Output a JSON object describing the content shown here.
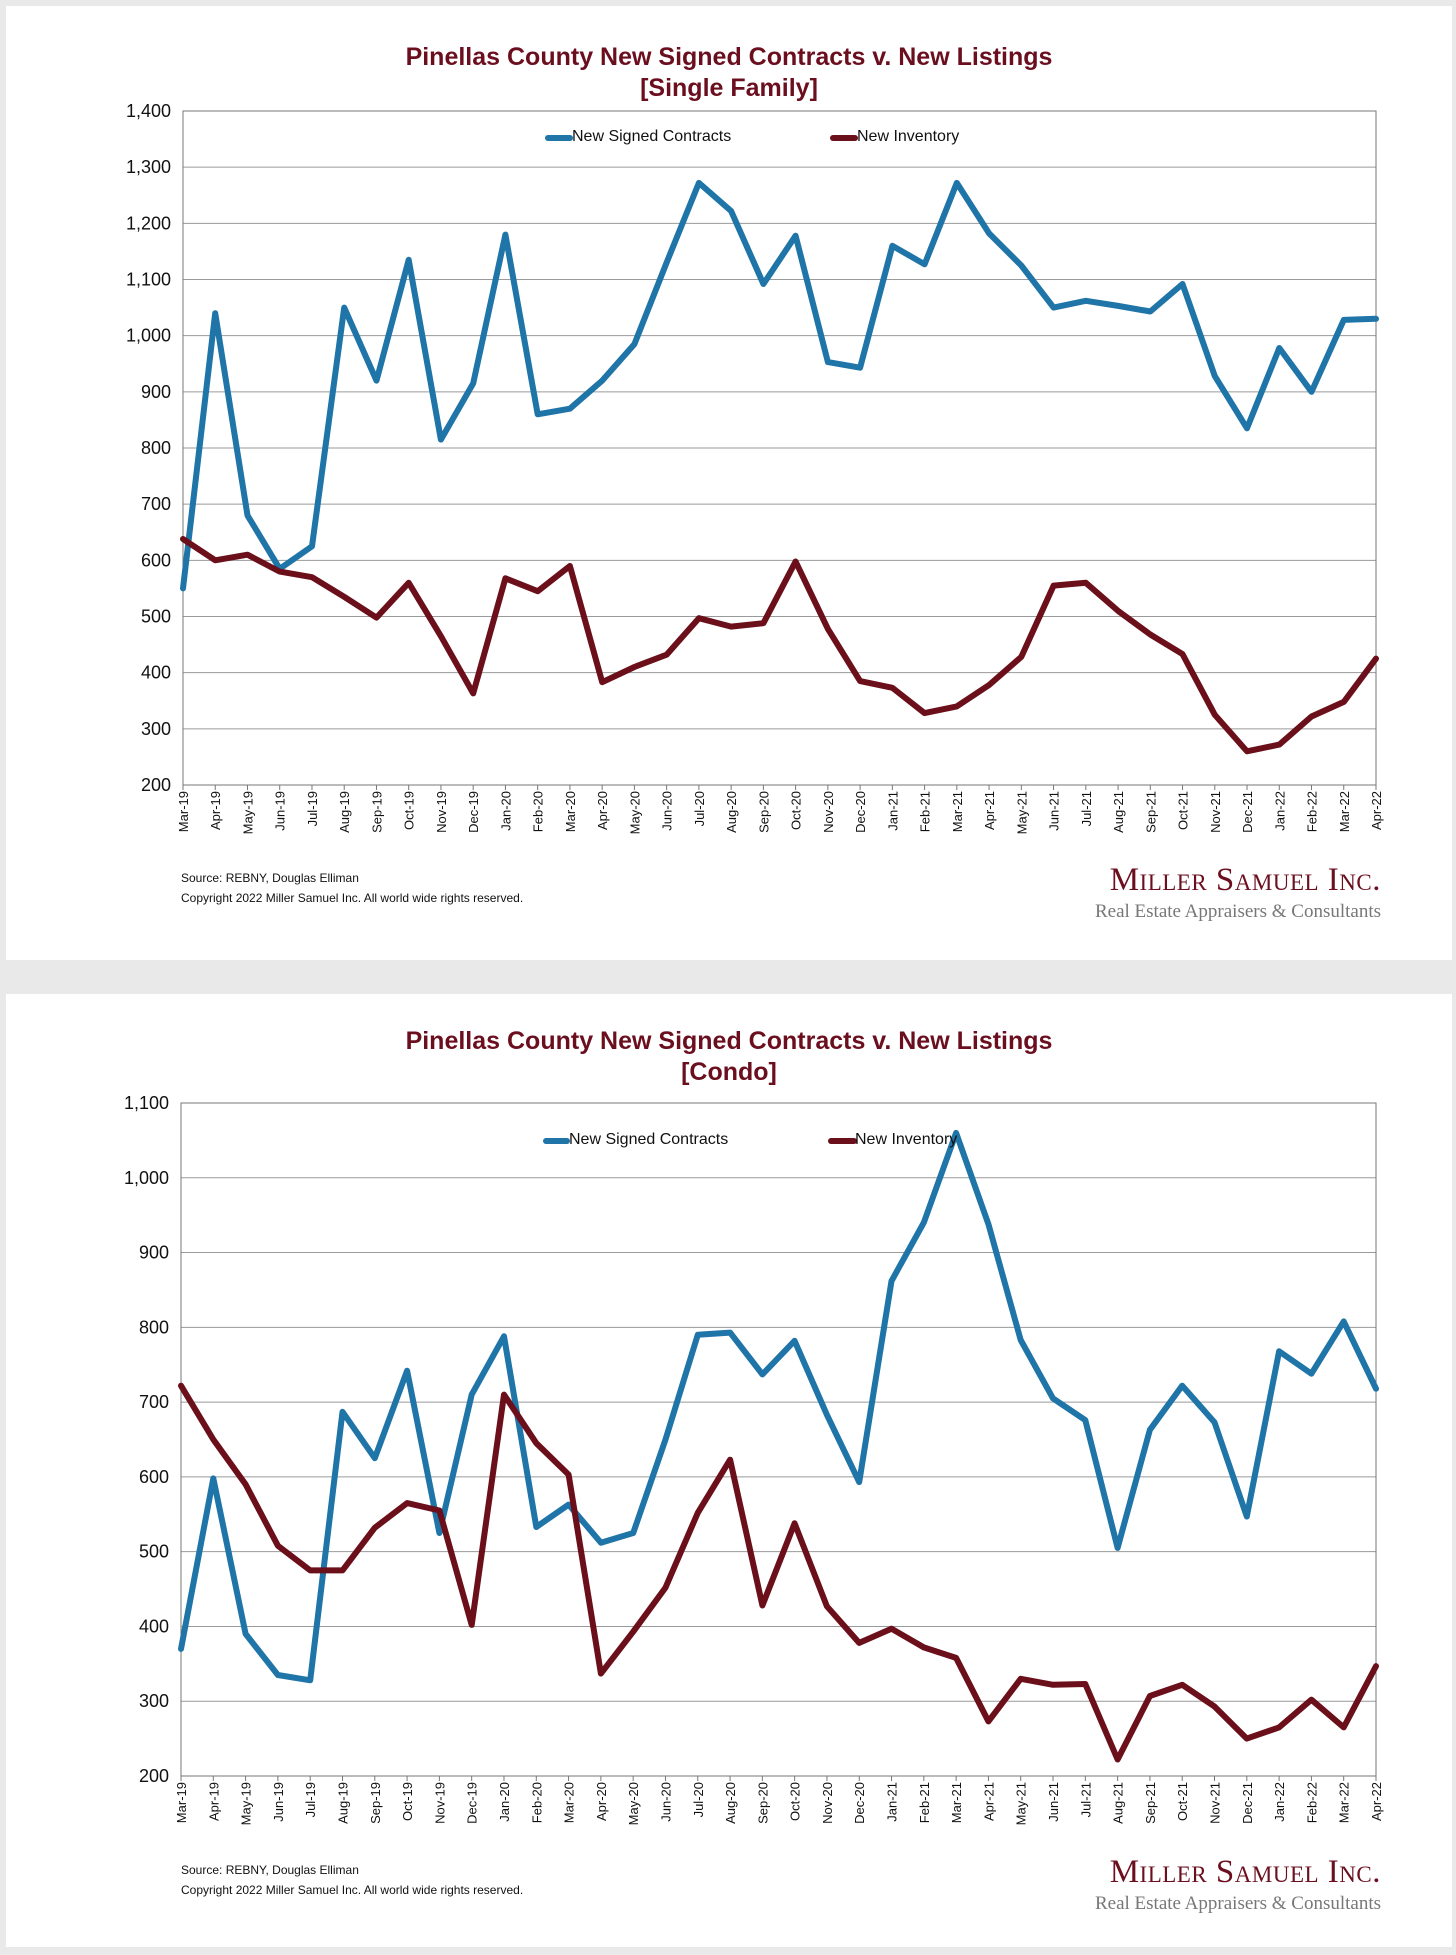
{
  "chart_data": [
    {
      "type": "line",
      "title": "Pinellas County New Signed Contracts v. New Listings",
      "subtitle": "[Single Family]",
      "xlabel": "",
      "ylabel": "",
      "ylim": [
        200,
        1400
      ],
      "yticks": [
        "200",
        "300",
        "400",
        "500",
        "600",
        "700",
        "800",
        "900",
        "1,000",
        "1,100",
        "1,200",
        "1,300",
        "1,400"
      ],
      "grid": true,
      "legend": "top-center",
      "categories": [
        "Mar-19",
        "Apr-19",
        "May-19",
        "Jun-19",
        "Jul-19",
        "Aug-19",
        "Sep-19",
        "Oct-19",
        "Nov-19",
        "Dec-19",
        "Jan-20",
        "Feb-20",
        "Mar-20",
        "Apr-20",
        "May-20",
        "Jun-20",
        "Jul-20",
        "Aug-20",
        "Sep-20",
        "Oct-20",
        "Nov-20",
        "Dec-20",
        "Jan-21",
        "Feb-21",
        "Mar-21",
        "Apr-21",
        "May-21",
        "Jun-21",
        "Jul-21",
        "Aug-21",
        "Sep-21",
        "Oct-21",
        "Nov-21",
        "Dec-21",
        "Jan-22",
        "Feb-22",
        "Mar-22",
        "Apr-22"
      ],
      "series": [
        {
          "name": "New Signed Contracts",
          "color": "#1f74a8",
          "values": [
            550,
            1040,
            680,
            585,
            625,
            1050,
            920,
            1135,
            815,
            915,
            1180,
            860,
            870,
            920,
            985,
            1130,
            1272,
            1222,
            1092,
            1178,
            953,
            943,
            1160,
            1127,
            1272,
            1182,
            1125,
            1050,
            1062,
            1053,
            1043,
            1092,
            928,
            835,
            978,
            900,
            1028,
            1030
          ]
        },
        {
          "name": "New Inventory",
          "color": "#6b0f1a",
          "values": [
            638,
            600,
            610,
            580,
            570,
            535,
            498,
            560,
            465,
            363,
            568,
            545,
            590,
            383,
            410,
            432,
            497,
            482,
            488,
            598,
            478,
            385,
            373,
            328,
            340,
            378,
            428,
            555,
            560,
            510,
            468,
            433,
            325,
            260,
            272,
            322,
            348,
            425
          ]
        }
      ]
    },
    {
      "type": "line",
      "title": "Pinellas County New Signed Contracts v. New Listings",
      "subtitle": "[Condo]",
      "xlabel": "",
      "ylabel": "",
      "ylim": [
        200,
        1100
      ],
      "yticks": [
        "200",
        "300",
        "400",
        "500",
        "600",
        "700",
        "800",
        "900",
        "1,000",
        "1,100"
      ],
      "grid": true,
      "legend": "top-center",
      "categories": [
        "Mar-19",
        "Apr-19",
        "May-19",
        "Jun-19",
        "Jul-19",
        "Aug-19",
        "Sep-19",
        "Oct-19",
        "Nov-19",
        "Dec-19",
        "Jan-20",
        "Feb-20",
        "Mar-20",
        "Apr-20",
        "May-20",
        "Jun-20",
        "Jul-20",
        "Aug-20",
        "Sep-20",
        "Oct-20",
        "Nov-20",
        "Dec-20",
        "Jan-21",
        "Feb-21",
        "Mar-21",
        "Apr-21",
        "May-21",
        "Jun-21",
        "Jul-21",
        "Aug-21",
        "Sep-21",
        "Oct-21",
        "Nov-21",
        "Dec-21",
        "Jan-22",
        "Feb-22",
        "Mar-22",
        "Apr-22"
      ],
      "series": [
        {
          "name": "New Signed Contracts",
          "color": "#1f74a8",
          "values": [
            370,
            598,
            390,
            335,
            328,
            687,
            625,
            742,
            525,
            710,
            788,
            533,
            563,
            512,
            525,
            650,
            790,
            793,
            737,
            782,
            683,
            593,
            862,
            940,
            1060,
            938,
            783,
            705,
            676,
            505,
            663,
            722,
            673,
            547,
            768,
            738,
            808,
            718
          ]
        },
        {
          "name": "New Inventory",
          "color": "#6b0f1a",
          "values": [
            722,
            650,
            590,
            508,
            475,
            475,
            532,
            565,
            555,
            402,
            710,
            645,
            603,
            337,
            393,
            452,
            552,
            623,
            428,
            538,
            427,
            378,
            397,
            372,
            358,
            273,
            330,
            322,
            323,
            222,
            307,
            322,
            293,
            250,
            265,
            302,
            265,
            347
          ]
        }
      ]
    }
  ],
  "footer": {
    "source": "Source: REBNY, Douglas Elliman",
    "copyright": "Copyright 2022 Miller Samuel Inc.  All world wide rights reserved."
  },
  "logo": {
    "name": "Miller Samuel Inc.",
    "tagline": "Real Estate Appraisers & Consultants"
  }
}
